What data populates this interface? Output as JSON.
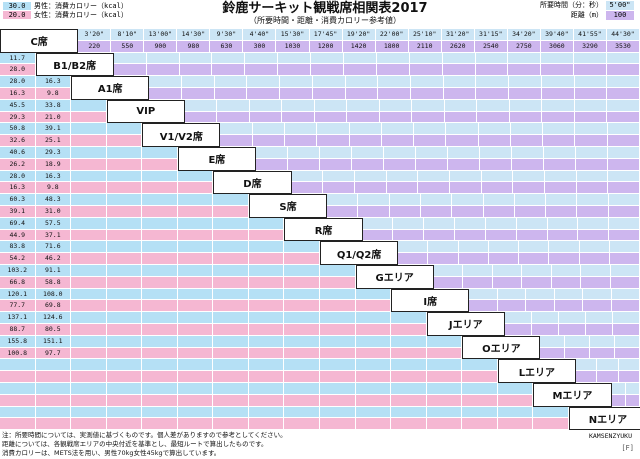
{
  "legend": {
    "male": {
      "value": "30.0",
      "label": "男性：消費カロリー（kcal）"
    },
    "female": {
      "value": "20.0",
      "label": "女性：消費カロリー（kcal）"
    }
  },
  "title": "鈴鹿サーキット観戦席相関表2017",
  "subtitle": "（所要時間・距離・消費カロリー参考値）",
  "legend_right": {
    "time": {
      "label": "所要時間（分：秒）",
      "value": "5'00\""
    },
    "distance": {
      "label": "距離（m）",
      "value": "100"
    }
  },
  "colors": {
    "time": "#cce5f5",
    "distance": "#cdb6ee",
    "male": "#b5e0f5",
    "female": "#f5b7d2",
    "name_bg": "#ffffff"
  },
  "sections": [
    "C席",
    "B1/B2席",
    "A1席",
    "VIP",
    "V1/V2席",
    "E席",
    "D席",
    "S席",
    "R席",
    "Q1/Q2席",
    "Gエリア",
    "I席",
    "Jエリア",
    "Oエリア",
    "Lエリア",
    "Mエリア",
    "Nエリア"
  ],
  "row1_times": [
    "3'20\"",
    "8'10\"",
    "13'00\"",
    "14'30\"",
    "9'30\"",
    "4'40\"",
    "15'30\"",
    "17'45\"",
    "19'20\"",
    "22'00\"",
    "25'10\"",
    "31'20\"",
    "31'15\"",
    "34'20\"",
    "39'40\"",
    "41'55\"",
    "44'30\""
  ],
  "row1_dist": [
    "220",
    "550",
    "900",
    "980",
    "630",
    "300",
    "1030",
    "1200",
    "1420",
    "1800",
    "2110",
    "2620",
    "2540",
    "2750",
    "3060",
    "3290",
    "3530"
  ],
  "calorie_rows": [
    [
      "11.7",
      "7.8"
    ],
    [
      "28.0",
      "16.3"
    ],
    [
      "28.0",
      "16.3"
    ],
    [
      "16.3",
      "9.8"
    ],
    [
      "45.5",
      "33.8"
    ],
    [
      "29.3",
      "21.0"
    ],
    [
      "50.8",
      "39.1"
    ],
    [
      "32.6",
      "25.1"
    ],
    [
      "40.6",
      "29.3"
    ],
    [
      "26.2",
      "18.9"
    ],
    [
      "28.0",
      "16.3"
    ],
    [
      "16.3",
      "9.8"
    ],
    [
      "60.3",
      "48.3"
    ],
    [
      "39.1",
      "31.0"
    ],
    [
      "69.4",
      "57.5"
    ],
    [
      "44.9",
      "37.1"
    ],
    [
      "83.8",
      "71.6"
    ],
    [
      "54.2",
      "46.2"
    ],
    [
      "103.2",
      "91.1"
    ],
    [
      "66.8",
      "58.8"
    ],
    [
      "120.1",
      "108.0"
    ],
    [
      "77.7",
      "69.8"
    ],
    [
      "137.1",
      "124.6"
    ],
    [
      "88.7",
      "80.5"
    ],
    [
      "155.8",
      "151.1"
    ],
    [
      "100.8",
      "97.7"
    ]
  ],
  "notes": [
    "注：所要時間については、実測値に基づくものです。個人差がありますので参考としてください。",
    "距離については、各観戦席エリアの中央付近を基準とし、最短ルートで算出したものです。",
    "消費カロリーは、METS法を用い、男性70kg女性45kgで算出しています。"
  ],
  "brand": "KAMSENZYUKU",
  "brand_mark": "[F]"
}
